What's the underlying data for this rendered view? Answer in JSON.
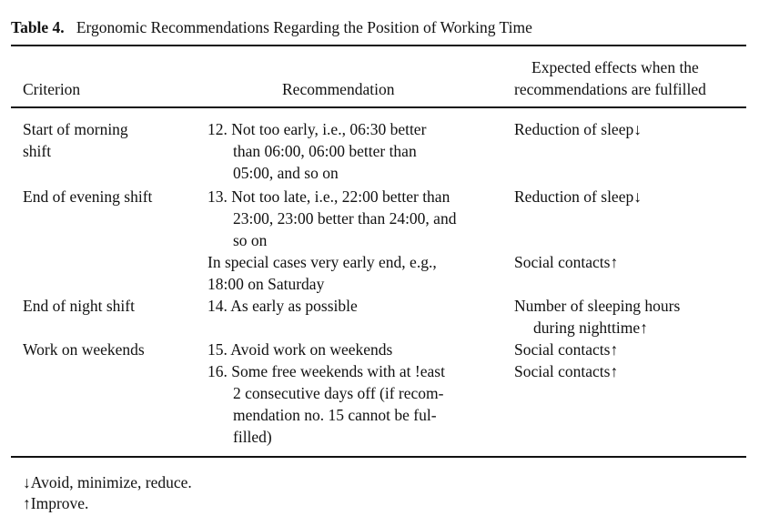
{
  "title": {
    "label": "Table 4.",
    "text": "Ergonomic Recommendations Regarding the Position of Working Time"
  },
  "headers": {
    "criterion": "Criterion",
    "recommendation": "Recommendation",
    "effects": [
      "Expected effects when the",
      "recommendations are fulfilled"
    ]
  },
  "rows": [
    {
      "criterion": [
        "Start of morning",
        "shift"
      ],
      "recommendation": [
        "12. Not too early, i.e., 06:30 better",
        "than 06:00, 06:00 better than",
        "05:00, and so on"
      ],
      "effect": [
        "Reduction of sleep↓"
      ]
    },
    {
      "criterion": [
        "End of evening shift"
      ],
      "recommendation": [
        "13. Not too late, i.e., 22:00 better than",
        "23:00, 23:00 better than 24:00, and",
        "so on"
      ],
      "effect": [
        "Reduction of sleep↓"
      ]
    },
    {
      "criterion": [],
      "recommendation": [
        "In special cases very early end, e.g.,",
        "18:00 on Saturday"
      ],
      "effect": [
        "Social contacts↑"
      ]
    },
    {
      "criterion": [
        "End of night shift"
      ],
      "recommendation": [
        "14. As early as possible"
      ],
      "effect": [
        "Number of sleeping hours",
        "during nighttime↑"
      ]
    },
    {
      "criterion": [
        "Work on weekends"
      ],
      "recommendation": [
        "15. Avoid work on weekends"
      ],
      "effect": [
        "Social contacts↑"
      ]
    },
    {
      "criterion": [],
      "recommendation": [
        "16. Some free weekends with at !east",
        "2 consecutive days off (if recom-",
        "mendation no. 15 cannot be ful-",
        "filled)"
      ],
      "effect": [
        "Social contacts↑"
      ]
    }
  ],
  "footnotes": [
    "↓Avoid, minimize, reduce.",
    "↑Improve."
  ]
}
